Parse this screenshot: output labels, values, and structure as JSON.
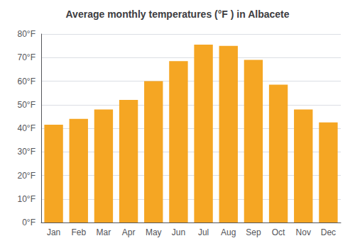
{
  "chart_data": {
    "type": "bar",
    "title": "Average monthly temperatures (°F ) in Albacete",
    "categories": [
      "Jan",
      "Feb",
      "Mar",
      "Apr",
      "May",
      "Jun",
      "Jul",
      "Aug",
      "Sep",
      "Oct",
      "Nov",
      "Dec"
    ],
    "values": [
      41.5,
      44.0,
      48.0,
      52.0,
      60.0,
      68.5,
      75.5,
      75.0,
      69.0,
      58.5,
      48.0,
      42.5
    ],
    "color": "#F5A623",
    "ylim": [
      0,
      80
    ],
    "yticks": [
      {
        "value": 0,
        "label": "0°F"
      },
      {
        "value": 10,
        "label": "10°F"
      },
      {
        "value": 20,
        "label": "20°F"
      },
      {
        "value": 30,
        "label": "30°F"
      },
      {
        "value": 40,
        "label": "40°F"
      },
      {
        "value": 50,
        "label": "50°F"
      },
      {
        "value": 60,
        "label": "60°F"
      },
      {
        "value": 70,
        "label": "70°F"
      },
      {
        "value": 80,
        "label": "80°F"
      }
    ],
    "grid": true
  }
}
